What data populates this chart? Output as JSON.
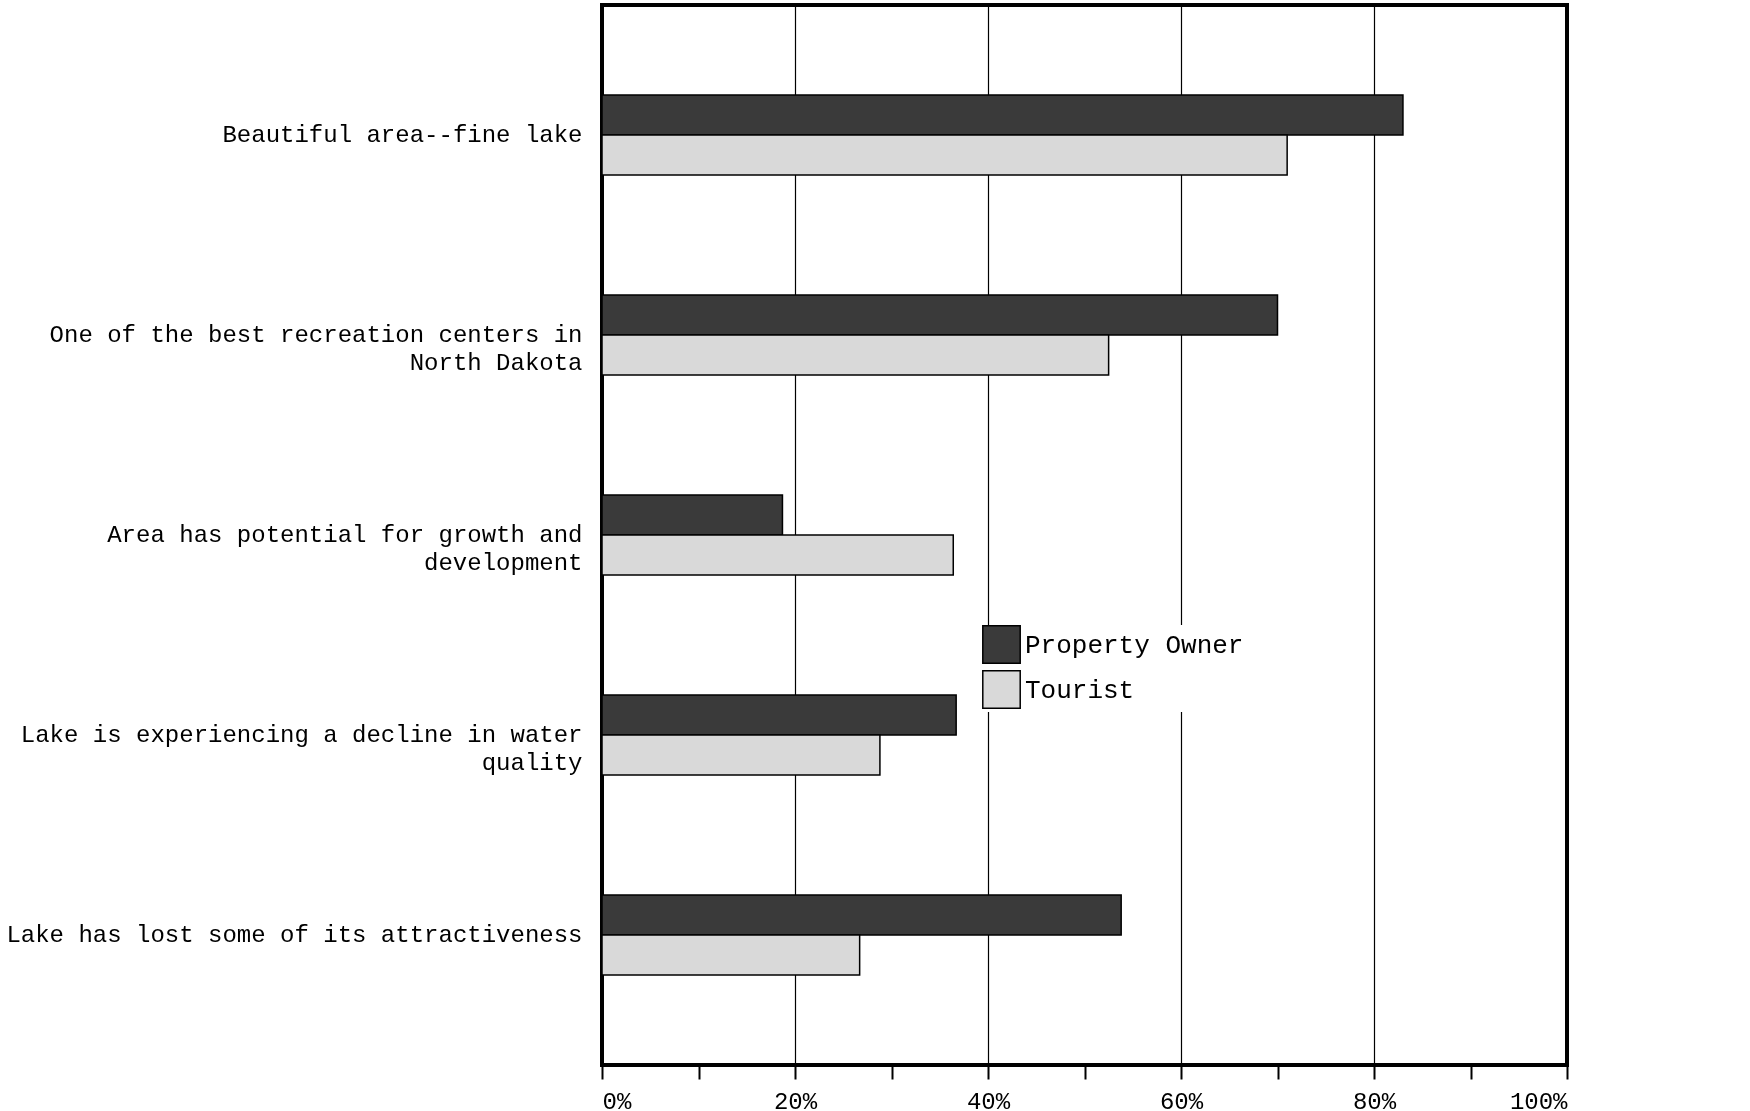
{
  "chart_data": {
    "type": "bar",
    "orientation": "horizontal",
    "categories": [
      "Beautiful area--fine lake",
      "One of the best recreation centers in North Dakota",
      "Area has potential for growth and development",
      "Lake is experiencing a decline in water quality",
      "Lake has lost some of its attractiveness"
    ],
    "series": [
      {
        "name": "Property Owner",
        "color": "#3a3a3a",
        "values": [
          83,
          70,
          18.7,
          36.7,
          53.8
        ]
      },
      {
        "name": "Tourist",
        "color": "#d9d9d9",
        "values": [
          71,
          52.5,
          36.4,
          28.8,
          26.7
        ]
      }
    ],
    "xlim": [
      0,
      100
    ],
    "xticks": [
      {
        "value": 0,
        "label": "0%"
      },
      {
        "value": 10,
        "label": null
      },
      {
        "value": 20,
        "label": "20%"
      },
      {
        "value": 30,
        "label": null
      },
      {
        "value": 40,
        "label": "40%"
      },
      {
        "value": 50,
        "label": null
      },
      {
        "value": 60,
        "label": "60%"
      },
      {
        "value": 70,
        "label": null
      },
      {
        "value": 80,
        "label": "80%"
      },
      {
        "value": 90,
        "label": null
      },
      {
        "value": 100,
        "label": "100%"
      }
    ],
    "grid": "x",
    "legend": "center"
  }
}
